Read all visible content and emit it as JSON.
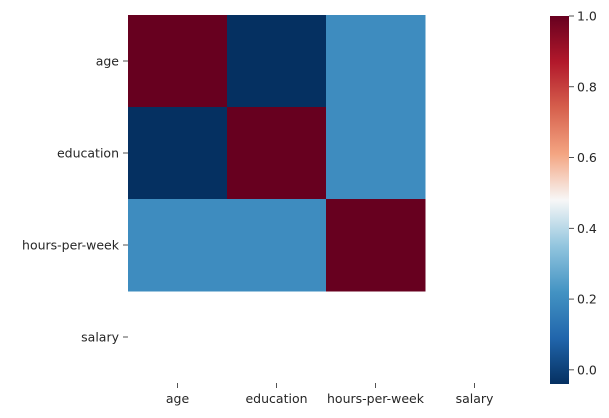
{
  "chart_data": {
    "type": "heatmap",
    "rows": [
      "age",
      "education",
      "hours-per-week",
      "salary"
    ],
    "columns": [
      "age",
      "education",
      "hours-per-week",
      "salary"
    ],
    "values": [
      [
        1.0,
        -0.04,
        0.2,
        null
      ],
      [
        -0.04,
        1.0,
        0.2,
        null
      ],
      [
        0.2,
        0.2,
        1.0,
        null
      ],
      [
        null,
        null,
        null,
        null
      ]
    ],
    "colormap": "RdBu_r",
    "colorbar": {
      "vmin": -0.04,
      "vmax": 1.0,
      "ticks": [
        0.0,
        0.2,
        0.4,
        0.6,
        0.8,
        1.0
      ],
      "tick_labels": [
        "0.0",
        "0.2",
        "0.4",
        "0.6",
        "0.8",
        "1.0"
      ]
    },
    "title": "",
    "xlabel": "",
    "ylabel": ""
  }
}
